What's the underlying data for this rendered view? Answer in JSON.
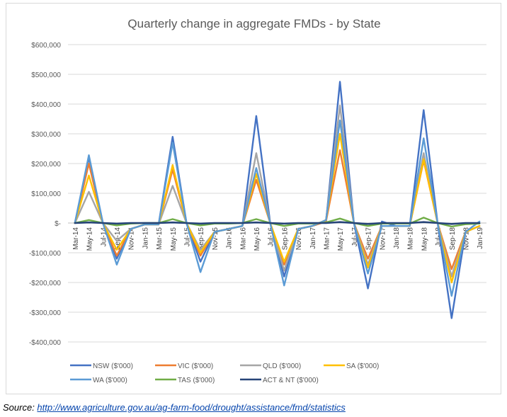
{
  "chart_data": {
    "type": "line",
    "title": "Quarterly change in aggregate FMDs - by State",
    "xlabel": "",
    "ylabel": "",
    "ylim": [
      -400000,
      600000
    ],
    "yticks": [
      600000,
      500000,
      400000,
      300000,
      200000,
      100000,
      0,
      -100000,
      -200000,
      -300000,
      -400000
    ],
    "ytick_labels": [
      "$600,000",
      "$500,000",
      "$400,000",
      "$300,000",
      "$200,000",
      "$100,000",
      "$-",
      "-$100,000",
      "-$200,000",
      "-$300,000",
      "-$400,000"
    ],
    "categories": [
      "Mar-14",
      "May-14",
      "Jul-14",
      "Sep-14",
      "Nov-14",
      "Jan-15",
      "Mar-15",
      "May-15",
      "Jul-15",
      "Sep-15",
      "Nov-15",
      "Jan-16",
      "Mar-16",
      "May-16",
      "Jul-16",
      "Sep-16",
      "Nov-16",
      "Jan-17",
      "Mar-17",
      "May-17",
      "Jul-17",
      "Sep-17",
      "Nov-17",
      "Jan-18",
      "Mar-18",
      "May-18",
      "Jul-18",
      "Sep-18",
      "Nov-18",
      "Jan-19"
    ],
    "grid": true,
    "legend_position": "bottom",
    "series": [
      {
        "name": "NSW ($'000)",
        "color": "#4472c4",
        "values": [
          0,
          220000,
          0,
          -120000,
          -20000,
          -5000,
          -5000,
          290000,
          0,
          -130000,
          -30000,
          -20000,
          -10000,
          360000,
          0,
          -180000,
          -20000,
          -10000,
          5000,
          475000,
          0,
          -220000,
          5000,
          -10000,
          -10000,
          380000,
          0,
          -320000,
          -30000,
          -10000
        ]
      },
      {
        "name": "VIC ($'000)",
        "color": "#ed7d31",
        "values": [
          0,
          200000,
          0,
          -110000,
          -20000,
          -5000,
          -5000,
          180000,
          0,
          -110000,
          -30000,
          -20000,
          -10000,
          145000,
          0,
          -140000,
          -20000,
          -10000,
          5000,
          245000,
          0,
          -120000,
          -10000,
          -10000,
          -10000,
          210000,
          0,
          -155000,
          -30000,
          -10000
        ]
      },
      {
        "name": "QLD ($'000)",
        "color": "#a5a5a5",
        "values": [
          0,
          105000,
          0,
          -60000,
          -20000,
          -5000,
          -5000,
          125000,
          0,
          -90000,
          -30000,
          -20000,
          -10000,
          235000,
          0,
          -160000,
          -20000,
          -10000,
          10000,
          395000,
          0,
          -140000,
          -10000,
          -10000,
          -10000,
          235000,
          0,
          -180000,
          -30000,
          -10000
        ]
      },
      {
        "name": "SA ($'000)",
        "color": "#ffc000",
        "values": [
          0,
          160000,
          0,
          -90000,
          -20000,
          -5000,
          -5000,
          195000,
          0,
          -100000,
          -30000,
          -20000,
          -10000,
          165000,
          0,
          -130000,
          -20000,
          -10000,
          10000,
          300000,
          0,
          -150000,
          -10000,
          -10000,
          -10000,
          215000,
          0,
          -200000,
          -30000,
          -10000
        ]
      },
      {
        "name": "WA ($'000)",
        "color": "#5b9bd5",
        "values": [
          0,
          228000,
          0,
          -140000,
          -20000,
          -5000,
          -5000,
          270000,
          0,
          -165000,
          -30000,
          -20000,
          -10000,
          185000,
          0,
          -210000,
          -20000,
          -10000,
          10000,
          345000,
          0,
          -170000,
          -10000,
          -10000,
          -10000,
          285000,
          0,
          -245000,
          -30000,
          5000
        ]
      },
      {
        "name": "TAS ($'000)",
        "color": "#70ad47",
        "values": [
          0,
          10000,
          0,
          -8000,
          -2000,
          0,
          0,
          13000,
          0,
          -8000,
          -2000,
          -2000,
          0,
          13000,
          0,
          -10000,
          -2000,
          -2000,
          2000,
          15000,
          0,
          -10000,
          -2000,
          -2000,
          -2000,
          18000,
          0,
          -12000,
          -4000,
          -2000
        ]
      },
      {
        "name": "ACT & NT ($'000)",
        "color": "#264478",
        "values": [
          0,
          2000,
          0,
          -2000,
          0,
          0,
          0,
          2000,
          0,
          -2000,
          0,
          0,
          0,
          2000,
          0,
          -2000,
          0,
          0,
          0,
          3000,
          0,
          -3000,
          0,
          0,
          0,
          3000,
          0,
          -3000,
          0,
          0
        ]
      }
    ]
  },
  "source": {
    "label": "Source: ",
    "link_text": "http://www.agriculture.gov.au/ag-farm-food/drought/assistance/fmd/statistics"
  }
}
